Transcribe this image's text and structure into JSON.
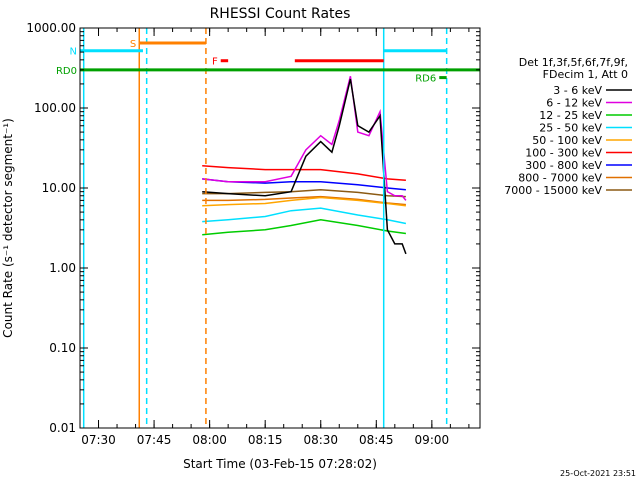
{
  "chart_data": {
    "type": "line",
    "title": "RHESSI Count Rates",
    "xlabel": "Start Time (03-Feb-15 07:28:02)",
    "ylabel": "Count Rate (s⁻¹ detector segment⁻¹)",
    "yscale": "log",
    "ylim": [
      0.01,
      1000
    ],
    "xlim": [
      "07:25",
      "09:13"
    ],
    "x_ticks": [
      "07:30",
      "07:45",
      "08:00",
      "08:15",
      "08:30",
      "08:45",
      "09:00"
    ],
    "y_ticks": [
      "0.01",
      "0.10",
      "1.00",
      "10.00",
      "100.00",
      "1000.00"
    ],
    "legend_header": [
      "Det 1f,3f,5f,6f,7f,9f,",
      "FDecim 1, Att 0"
    ],
    "legend_position": "right",
    "grid": false,
    "series": [
      {
        "name": "3 - 6 keV",
        "color": "#000000",
        "x": [
          "07:58",
          "08:05",
          "08:15",
          "08:22",
          "08:26",
          "08:30",
          "08:33",
          "08:35",
          "08:38",
          "08:40",
          "08:43",
          "08:46",
          "08:48",
          "08:50",
          "08:52",
          "08:53"
        ],
        "values": [
          9,
          8.5,
          8,
          9,
          25,
          38,
          28,
          60,
          230,
          60,
          50,
          80,
          3,
          2,
          2,
          1.5
        ]
      },
      {
        "name": "6 - 12 keV",
        "color": "#e000e0",
        "x": [
          "07:58",
          "08:05",
          "08:15",
          "08:22",
          "08:26",
          "08:30",
          "08:33",
          "08:35",
          "08:38",
          "08:40",
          "08:43",
          "08:46",
          "08:48",
          "08:50",
          "08:52",
          "08:53"
        ],
        "values": [
          13,
          12,
          12,
          14,
          30,
          45,
          35,
          70,
          250,
          50,
          45,
          90,
          9,
          8,
          8,
          7
        ]
      },
      {
        "name": "12 - 25 keV",
        "color": "#00cc00",
        "x": [
          "07:58",
          "08:05",
          "08:15",
          "08:22",
          "08:30",
          "08:40",
          "08:48",
          "08:53"
        ],
        "values": [
          2.6,
          2.8,
          3.0,
          3.4,
          4.0,
          3.4,
          2.9,
          2.7
        ]
      },
      {
        "name": "25 - 50 keV",
        "color": "#00e0ff",
        "x": [
          "07:58",
          "08:05",
          "08:15",
          "08:22",
          "08:30",
          "08:40",
          "08:48",
          "08:53"
        ],
        "values": [
          3.8,
          4.0,
          4.4,
          5.2,
          5.6,
          4.6,
          4.0,
          3.6
        ]
      },
      {
        "name": "50 - 100 keV",
        "color": "#ffa500",
        "x": [
          "07:58",
          "08:05",
          "08:15",
          "08:22",
          "08:30",
          "08:40",
          "08:48",
          "08:53"
        ],
        "values": [
          6.0,
          6.2,
          6.4,
          7.0,
          7.6,
          7.0,
          6.4,
          6.0
        ]
      },
      {
        "name": "100 - 300 keV",
        "color": "#ff0000",
        "x": [
          "07:58",
          "08:05",
          "08:15",
          "08:22",
          "08:30",
          "08:40",
          "08:48",
          "08:53"
        ],
        "values": [
          19,
          18,
          17,
          17,
          17,
          15,
          13,
          12.5
        ]
      },
      {
        "name": "300 - 800 keV",
        "color": "#0000ff",
        "x": [
          "07:58",
          "08:05",
          "08:15",
          "08:22",
          "08:30",
          "08:40",
          "08:48",
          "08:53"
        ],
        "values": [
          13,
          12,
          11.5,
          12,
          12,
          11,
          10,
          9.5
        ]
      },
      {
        "name": "800 - 7000 keV",
        "color": "#e07000",
        "x": [
          "07:58",
          "08:05",
          "08:15",
          "08:22",
          "08:30",
          "08:40",
          "08:48",
          "08:53"
        ],
        "values": [
          7.0,
          7.0,
          7.2,
          7.5,
          7.8,
          7.2,
          6.5,
          6.2
        ]
      },
      {
        "name": "7000 - 15000 keV",
        "color": "#8b5a14",
        "x": [
          "07:58",
          "08:05",
          "08:15",
          "08:22",
          "08:30",
          "08:40",
          "08:48",
          "08:53"
        ],
        "values": [
          8.5,
          8.5,
          8.8,
          9.0,
          9.5,
          8.8,
          8.0,
          7.8
        ]
      }
    ],
    "annotations": [
      {
        "text": "S",
        "color": "#ff8000",
        "x_start": "07:41",
        "x_end": "07:59",
        "y": 650
      },
      {
        "text": "N",
        "color": "#00e0ff",
        "x_start": "07:25",
        "x_end": "07:42",
        "y": 520
      },
      {
        "text": "F",
        "color": "#ff0000",
        "x_start": "08:03",
        "x_end": "08:05",
        "y": 390
      },
      {
        "text": "",
        "color": "#ff0000",
        "x_start": "08:23",
        "x_end": "08:47",
        "y": 390
      },
      {
        "text": "",
        "color": "#00e0ff",
        "x_start": "08:47",
        "x_end": "09:04",
        "y": 520
      },
      {
        "text": "RD0",
        "color": "#00a000",
        "x_start": "07:25",
        "x_end": "09:13",
        "y": 300
      },
      {
        "text": "RD6",
        "color": "#00a000",
        "x_start": "09:02",
        "x_end": "09:04",
        "y": 240
      }
    ],
    "vlines": [
      {
        "x": "07:26",
        "color": "#00e0ff",
        "style": "solid"
      },
      {
        "x": "07:41",
        "color": "#ff8000",
        "style": "solid"
      },
      {
        "x": "07:43",
        "color": "#00e0ff",
        "style": "dashed"
      },
      {
        "x": "07:59",
        "color": "#ff8000",
        "style": "dashed"
      },
      {
        "x": "08:47",
        "color": "#00e0ff",
        "style": "solid"
      },
      {
        "x": "09:04",
        "color": "#00e0ff",
        "style": "dashed"
      }
    ]
  },
  "timestamp": "25-Oct-2021 23:51"
}
